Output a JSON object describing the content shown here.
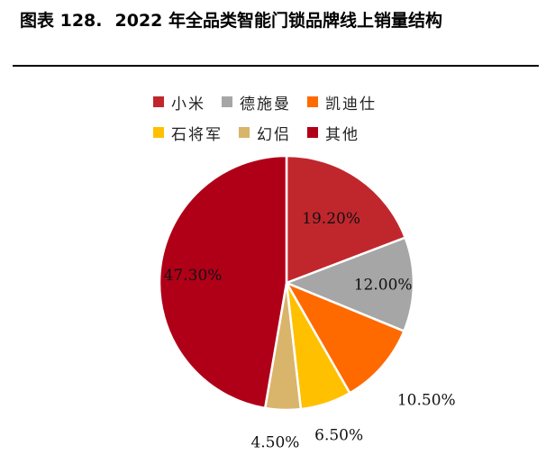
{
  "header": {
    "figure_number": "图表 128.",
    "title": "2022 年全品类智能门锁品牌线上销量结构"
  },
  "chart_data": {
    "type": "pie",
    "title": "",
    "legend_position": "top",
    "slices": [
      {
        "name": "小米",
        "value": 19.2,
        "label": "19.20%",
        "color": "#C0272D"
      },
      {
        "name": "德施曼",
        "value": 12.0,
        "label": "12.00%",
        "color": "#A6A6A6"
      },
      {
        "name": "凯迪仕",
        "value": 10.5,
        "label": "10.50%",
        "color": "#FF6A00"
      },
      {
        "name": "石将军",
        "value": 6.5,
        "label": "6.50%",
        "color": "#FFC000"
      },
      {
        "name": "幻侣",
        "value": 4.5,
        "label": "4.50%",
        "color": "#D9B46B"
      },
      {
        "name": "其他",
        "value": 47.3,
        "label": "47.30%",
        "color": "#B00018"
      }
    ]
  }
}
